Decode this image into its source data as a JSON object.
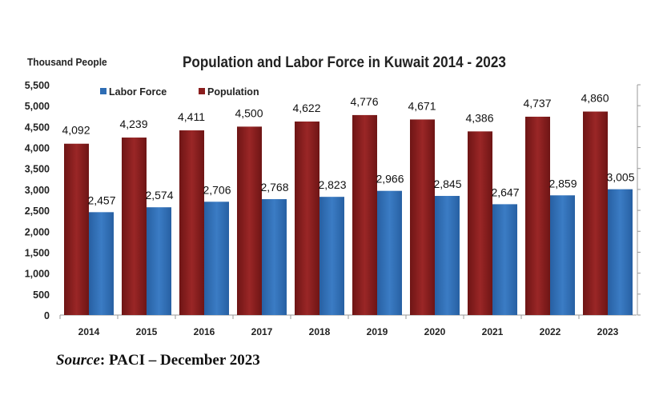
{
  "chart_data": {
    "type": "bar",
    "title": "Population and Labor Force in Kuwait 2014 - 2023",
    "ylabel": "Thousand People",
    "xlabel": "",
    "categories": [
      "2014",
      "2015",
      "2016",
      "2017",
      "2018",
      "2019",
      "2020",
      "2021",
      "2022",
      "2023"
    ],
    "series": [
      {
        "name": "Population",
        "color": "#8b1e1e",
        "values": [
          4092,
          4239,
          4411,
          4500,
          4622,
          4776,
          4671,
          4386,
          4737,
          4860
        ]
      },
      {
        "name": "Labor Force",
        "color": "#2e6db4",
        "values": [
          2457,
          2574,
          2706,
          2768,
          2823,
          2966,
          2845,
          2647,
          2859,
          3005
        ]
      }
    ],
    "legend": {
      "order": [
        "Labor Force",
        "Population"
      ],
      "placement": "top-left"
    },
    "ylim": [
      0,
      5500
    ],
    "yticks": [
      0,
      500,
      1000,
      1500,
      2000,
      2500,
      3000,
      3500,
      4000,
      4500,
      5000,
      5500
    ],
    "grid": false
  },
  "source": {
    "label": "Source",
    "text": ": PACI – December 2023"
  }
}
